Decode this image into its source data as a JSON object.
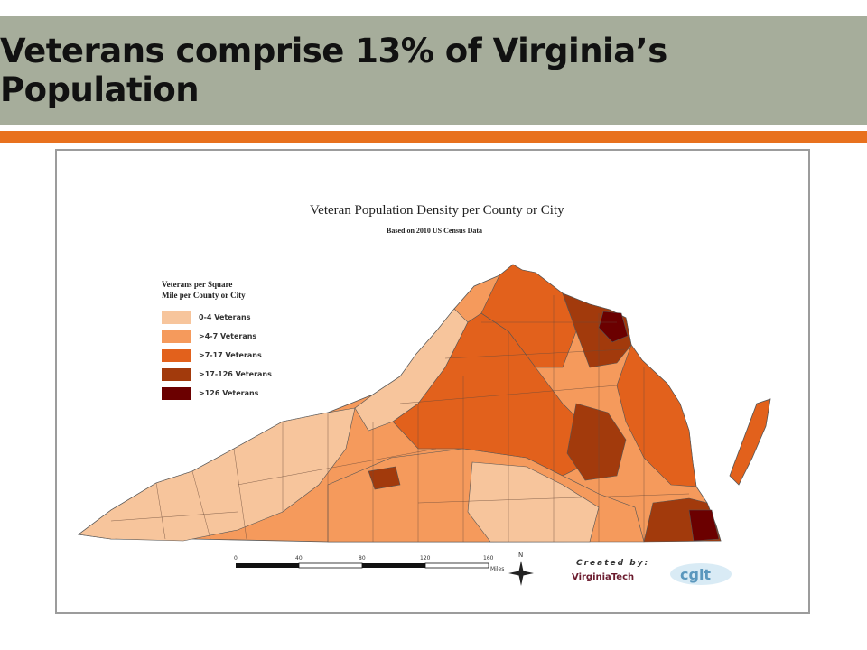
{
  "slide": {
    "title": "Veterans comprise 13% of Virginia’s Population",
    "header_color": "#a6ad9b",
    "accent_color": "#e8711e"
  },
  "map": {
    "title": "Veteran Population Density per County or City",
    "subtitle": "Based on 2010 US Census Data",
    "legend": {
      "title_line1": "Veterans per Square",
      "title_line2": "Mile per County or City",
      "classes": [
        {
          "label": "0-4 Veterans",
          "color": "#f7c59c"
        },
        {
          "label": ">4-7 Veterans",
          "color": "#f59a5c"
        },
        {
          "label": ">7-17 Veterans",
          "color": "#e2611c"
        },
        {
          "label": ">17-126 Veterans",
          "color": "#a23a0c"
        },
        {
          "label": ">126 Veterans",
          "color": "#6b0000"
        }
      ]
    },
    "scale_bar": {
      "ticks": [
        "0",
        "40",
        "80",
        "120",
        "160"
      ],
      "unit": "Miles"
    },
    "north_label": "N",
    "credits": {
      "created_by": "Created by:",
      "org": "VirginiaTech",
      "logo_text": "cgit"
    }
  }
}
